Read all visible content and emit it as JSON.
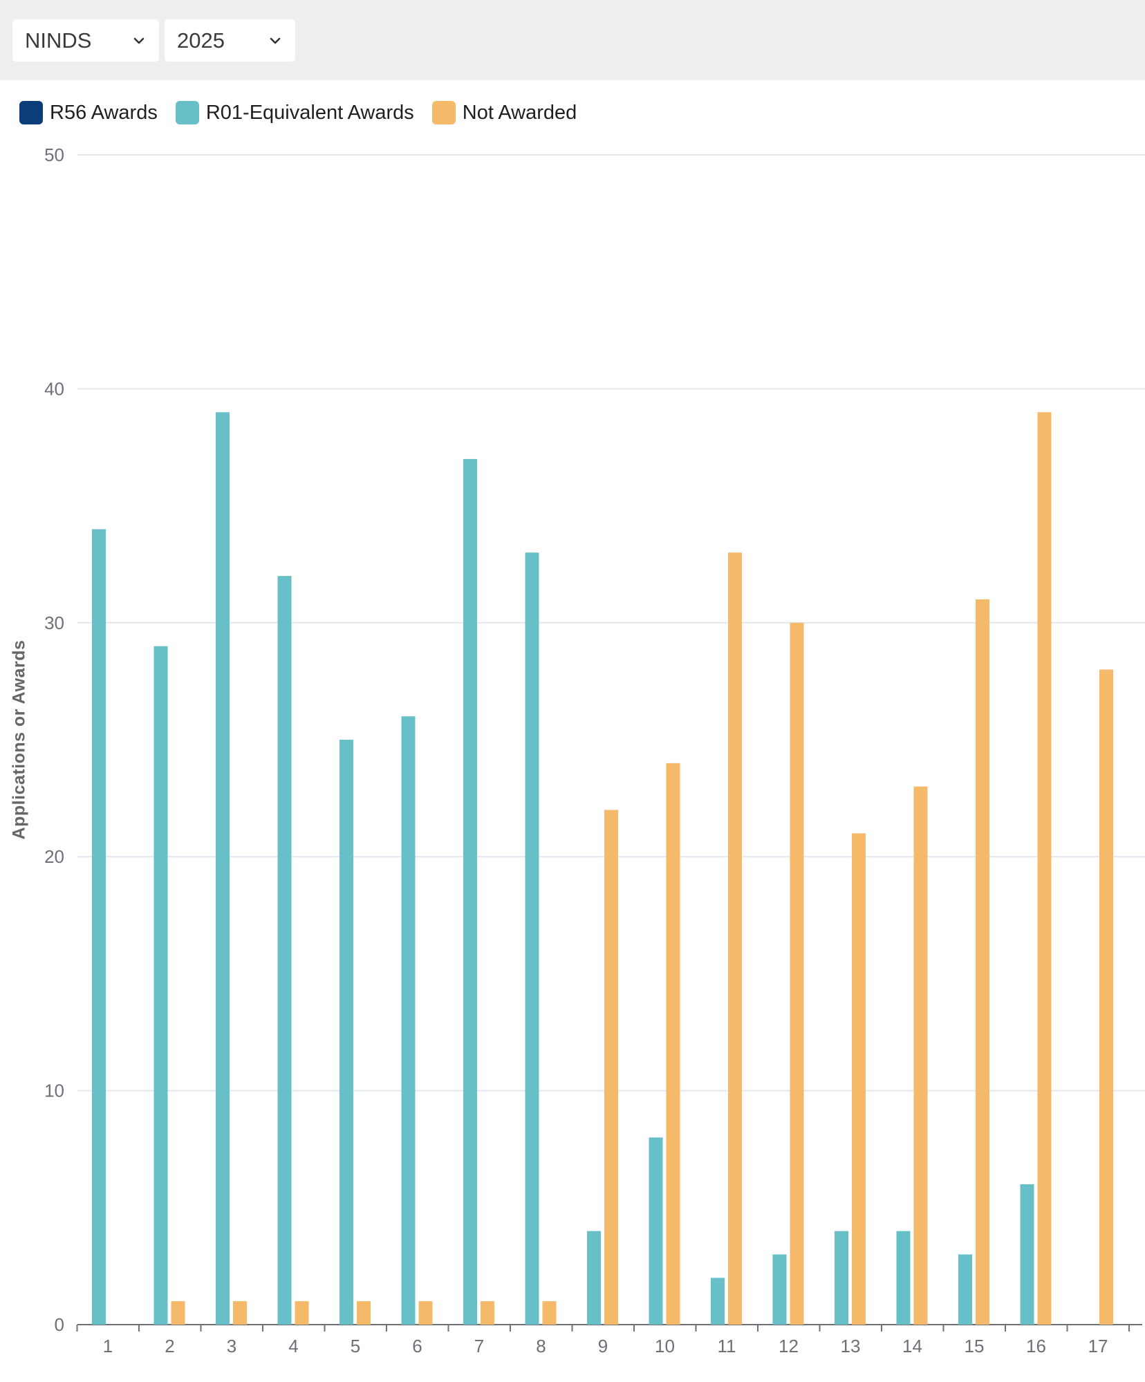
{
  "filters": {
    "ic": {
      "value": "NINDS"
    },
    "year": {
      "value": "2025"
    }
  },
  "legend": [
    {
      "label": "R56 Awards",
      "color": "#0b3d7a"
    },
    {
      "label": "R01-Equivalent Awards",
      "color": "#67c0c8"
    },
    {
      "label": "Not Awarded",
      "color": "#f5b96a"
    }
  ],
  "chart_data": {
    "type": "bar",
    "ylabel": "Applications or Awards",
    "xlabel": "",
    "ylim": [
      0,
      50
    ],
    "yticks": [
      0,
      10,
      20,
      30,
      40,
      50
    ],
    "categories": [
      "1",
      "2",
      "3",
      "4",
      "5",
      "6",
      "7",
      "8",
      "9",
      "10",
      "11",
      "12",
      "13",
      "14",
      "15",
      "16",
      "17"
    ],
    "grid": true,
    "legend_position": "top-left",
    "series": [
      {
        "name": "R56 Awards",
        "color": "#0b3d7a",
        "values": [
          0,
          0,
          0,
          0,
          0,
          0,
          0,
          0,
          0,
          0,
          0,
          0,
          0,
          0,
          0,
          0,
          0
        ]
      },
      {
        "name": "R01-Equivalent Awards",
        "color": "#67c0c8",
        "values": [
          34,
          29,
          39,
          32,
          25,
          26,
          37,
          33,
          4,
          8,
          2,
          3,
          4,
          4,
          3,
          6,
          0
        ]
      },
      {
        "name": "Not Awarded",
        "color": "#f5b96a",
        "values": [
          0,
          1,
          1,
          1,
          1,
          1,
          1,
          1,
          22,
          24,
          33,
          30,
          21,
          23,
          31,
          39,
          28
        ]
      }
    ]
  }
}
